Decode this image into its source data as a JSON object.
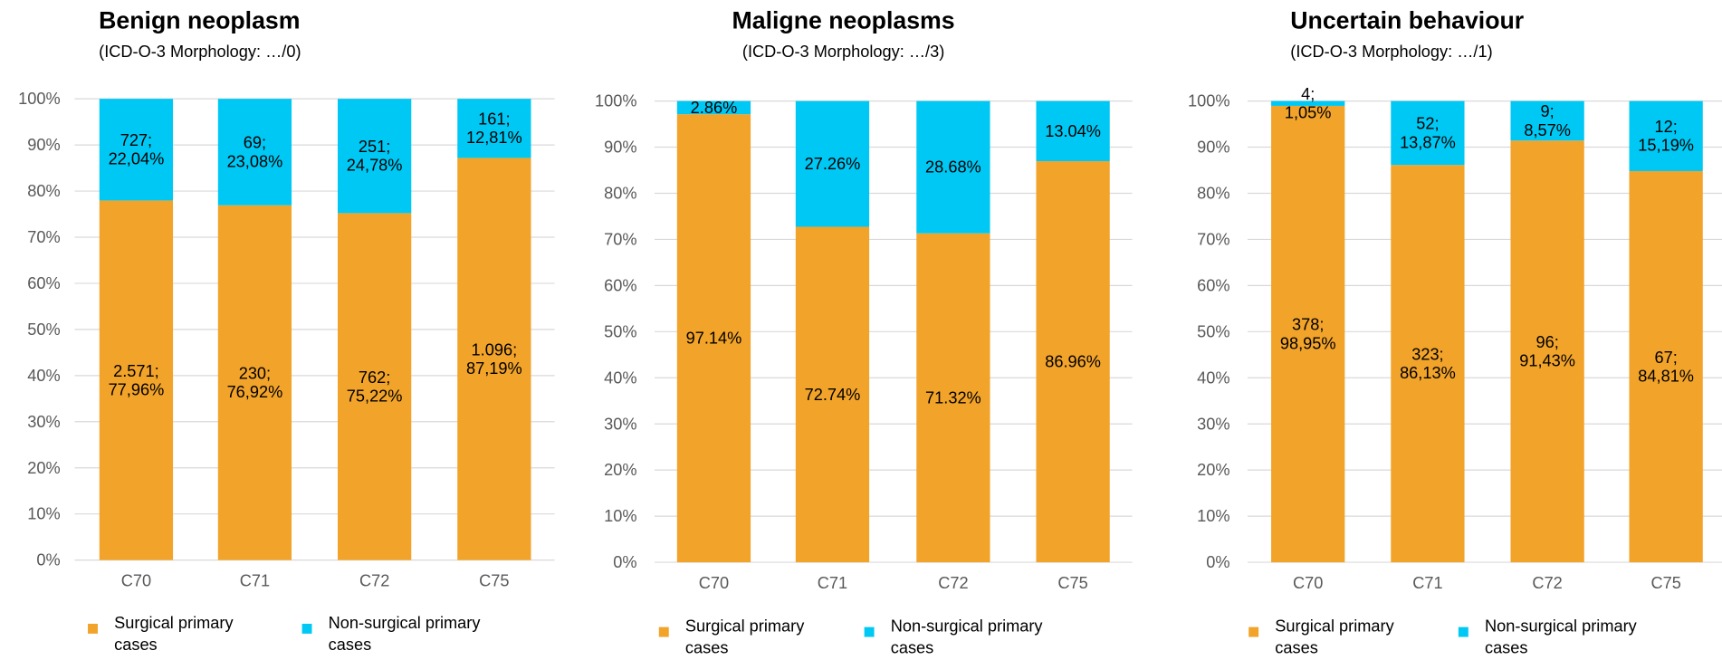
{
  "chart_data": [
    {
      "type": "bar",
      "stacked": true,
      "title": "Benign neoplasm",
      "subtitle": "(ICD-O-3 Morphology: …/0)",
      "categories": [
        "C70",
        "C71",
        "C72",
        "C75"
      ],
      "series": [
        {
          "name": "Surgical primary cases",
          "color": "#f2a32a",
          "values": [
            77.96,
            76.92,
            75.22,
            87.19
          ],
          "value_labels": [
            "2.571;\n77,96%",
            "230;\n76,92%",
            "762;\n75,22%",
            "1.096;\n87,19%"
          ]
        },
        {
          "name": "Non-surgical primary cases",
          "color": "#00c8f4",
          "values": [
            22.04,
            23.08,
            24.78,
            12.81
          ],
          "value_labels": [
            "727;\n22,04%",
            "69;\n23,08%",
            "251;\n24,78%",
            "161;\n12,81%"
          ]
        }
      ],
      "ylim": [
        0,
        100
      ],
      "yticks": [
        {
          "value": 0,
          "label": "0%"
        },
        {
          "value": 10,
          "label": "10%"
        },
        {
          "value": 20,
          "label": "20%"
        },
        {
          "value": 30,
          "label": "30%"
        },
        {
          "value": 40,
          "label": "40%"
        },
        {
          "value": 50,
          "label": "50%"
        },
        {
          "value": 60,
          "label": "60%"
        },
        {
          "value": 70,
          "label": "70%"
        },
        {
          "value": 80,
          "label": "80%"
        },
        {
          "value": 90,
          "label": "90%"
        },
        {
          "value": 100,
          "label": "100%"
        }
      ],
      "grid": true,
      "legend": "bottom"
    },
    {
      "type": "bar",
      "stacked": true,
      "title": "Maligne neoplasms",
      "subtitle": "(ICD-O-3 Morphology: …/3)",
      "categories": [
        "C70",
        "C71",
        "C72",
        "C75"
      ],
      "series": [
        {
          "name": "Surgical primary cases",
          "color": "#f2a32a",
          "values": [
            97.14,
            72.74,
            71.32,
            86.96
          ],
          "value_labels": [
            "97.14%",
            "72.74%",
            "71.32%",
            "86.96%"
          ]
        },
        {
          "name": "Non-surgical primary cases",
          "color": "#00c8f4",
          "values": [
            2.86,
            27.26,
            28.68,
            13.04
          ],
          "value_labels": [
            "2.86%",
            "27.26%",
            "28.68%",
            "13.04%"
          ]
        }
      ],
      "ylim": [
        0,
        100
      ],
      "yticks": [
        {
          "value": 0,
          "label": "0%"
        },
        {
          "value": 10,
          "label": "10%"
        },
        {
          "value": 20,
          "label": "20%"
        },
        {
          "value": 30,
          "label": "30%"
        },
        {
          "value": 40,
          "label": "40%"
        },
        {
          "value": 50,
          "label": "50%"
        },
        {
          "value": 60,
          "label": "60%"
        },
        {
          "value": 70,
          "label": "70%"
        },
        {
          "value": 80,
          "label": "80%"
        },
        {
          "value": 90,
          "label": "90%"
        },
        {
          "value": 100,
          "label": "100%"
        }
      ],
      "grid": true,
      "legend": "bottom"
    },
    {
      "type": "bar",
      "stacked": true,
      "title": "Uncertain behaviour",
      "subtitle": "(ICD-O-3 Morphology: …/1)",
      "categories": [
        "C70",
        "C71",
        "C72",
        "C75"
      ],
      "series": [
        {
          "name": "Surgical primary cases",
          "color": "#f2a32a",
          "values": [
            98.95,
            86.13,
            91.43,
            84.81
          ],
          "value_labels": [
            "378;\n98,95%",
            "323;\n86,13%",
            "96;\n91,43%",
            "67;\n84,81%"
          ]
        },
        {
          "name": "Non-surgical primary cases",
          "color": "#00c8f4",
          "values": [
            1.05,
            13.87,
            8.57,
            15.19
          ],
          "value_labels": [
            "4;\n1,05%",
            "52;\n13,87%",
            "9;\n8,57%",
            "12;\n15,19%"
          ]
        }
      ],
      "ylim": [
        0,
        100
      ],
      "yticks": [
        {
          "value": 0,
          "label": "0%"
        },
        {
          "value": 10,
          "label": "10%"
        },
        {
          "value": 20,
          "label": "20%"
        },
        {
          "value": 30,
          "label": "30%"
        },
        {
          "value": 40,
          "label": "40%"
        },
        {
          "value": 50,
          "label": "50%"
        },
        {
          "value": 60,
          "label": "60%"
        },
        {
          "value": 70,
          "label": "70%"
        },
        {
          "value": 80,
          "label": "80%"
        },
        {
          "value": 90,
          "label": "90%"
        },
        {
          "value": 100,
          "label": "100%"
        }
      ],
      "grid": true,
      "legend": "bottom"
    }
  ]
}
